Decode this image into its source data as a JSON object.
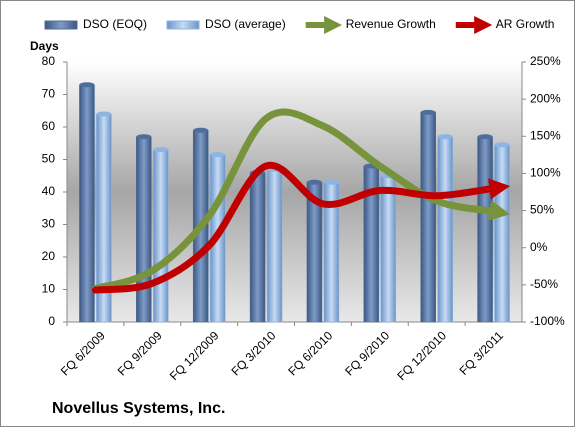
{
  "chart_data": {
    "type": "bar-line",
    "title": "Novellus Systems, Inc.",
    "y_label": "Days",
    "categories": [
      "FQ 6/2009",
      "FQ 9/2009",
      "FQ 12/2009",
      "FQ 3/2010",
      "FQ 6/2010",
      "FQ 9/2010",
      "FQ 12/2010",
      "FQ 3/2011"
    ],
    "series": [
      {
        "name": "DSO (EOQ)",
        "color": "#4f6e9c",
        "kind": "bar",
        "values": [
          73,
          57,
          59,
          46,
          43,
          48,
          64.5,
          57
        ]
      },
      {
        "name": "DSO (average)",
        "color": "#8eb4e3",
        "kind": "bar",
        "values": [
          64,
          53,
          51.5,
          47,
          43,
          45,
          57,
          54.5
        ]
      },
      {
        "name": "Revenue Growth",
        "color": "#77933c",
        "kind": "line",
        "axis": "y2",
        "values": [
          -55,
          -31,
          43,
          174,
          164,
          110,
          63,
          49
        ]
      },
      {
        "name": "AR Growth",
        "color": "#c00000",
        "kind": "line",
        "axis": "y2",
        "values": [
          -57,
          -48,
          3,
          110,
          59,
          77,
          70,
          80
        ]
      }
    ],
    "ylim": [
      0,
      80
    ],
    "yticks": [
      0,
      10,
      20,
      30,
      40,
      50,
      60,
      70,
      80
    ],
    "y2lim": [
      -100,
      250
    ],
    "y2ticks": [
      {
        "value": -100,
        "label": "-100%"
      },
      {
        "value": -50,
        "label": "-50%"
      },
      {
        "value": 0,
        "label": "0%"
      },
      {
        "value": 50,
        "label": "50%"
      },
      {
        "value": 100,
        "label": "100%"
      },
      {
        "value": 150,
        "label": "150%"
      },
      {
        "value": 200,
        "label": "200%"
      },
      {
        "value": 250,
        "label": "250%"
      }
    ],
    "legend": "top"
  }
}
